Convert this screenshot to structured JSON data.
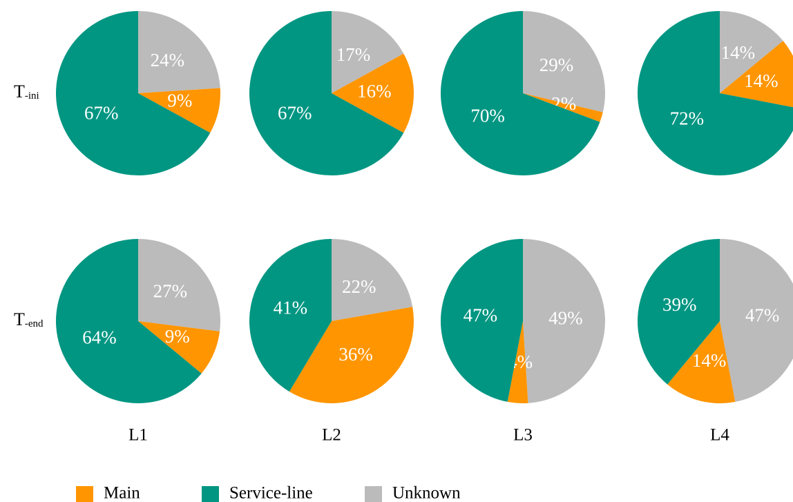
{
  "legend": {
    "labels": [
      "Main",
      "Service-line",
      "Unknown"
    ],
    "colors": [
      "#ff9500",
      "#009682",
      "#bbbbbb"
    ]
  },
  "row_labels": [
    {
      "symbol": "T",
      "subscript": "-ini"
    },
    {
      "symbol": "T",
      "subscript": "-end"
    }
  ],
  "column_labels": [
    "L1",
    "L2",
    "L3",
    "L4"
  ],
  "chart_data": [
    {
      "type": "pie",
      "values": [
        9,
        67,
        24
      ],
      "value_labels": [
        "9%",
        "67%",
        "24%"
      ]
    },
    {
      "type": "pie",
      "values": [
        16,
        67,
        17
      ],
      "value_labels": [
        "16%",
        "67%",
        "17%"
      ]
    },
    {
      "type": "pie",
      "values": [
        2,
        70,
        29
      ],
      "value_labels": [
        "2%",
        "70%",
        "29%"
      ]
    },
    {
      "type": "pie",
      "values": [
        14,
        72,
        14
      ],
      "value_labels": [
        "14%",
        "72%",
        "14%"
      ]
    },
    {
      "type": "pie",
      "values": [
        9,
        64,
        27
      ],
      "value_labels": [
        "9%",
        "64%",
        "27%"
      ]
    },
    {
      "type": "pie",
      "values": [
        36,
        41,
        22
      ],
      "value_labels": [
        "36%",
        "41%",
        "22%"
      ]
    },
    {
      "type": "pie",
      "values": [
        4,
        47,
        49
      ],
      "value_labels": [
        "4%",
        "47%",
        "49%"
      ]
    },
    {
      "type": "pie",
      "values": [
        14,
        39,
        47
      ],
      "value_labels": [
        "14%",
        "39%",
        "47%"
      ]
    }
  ]
}
